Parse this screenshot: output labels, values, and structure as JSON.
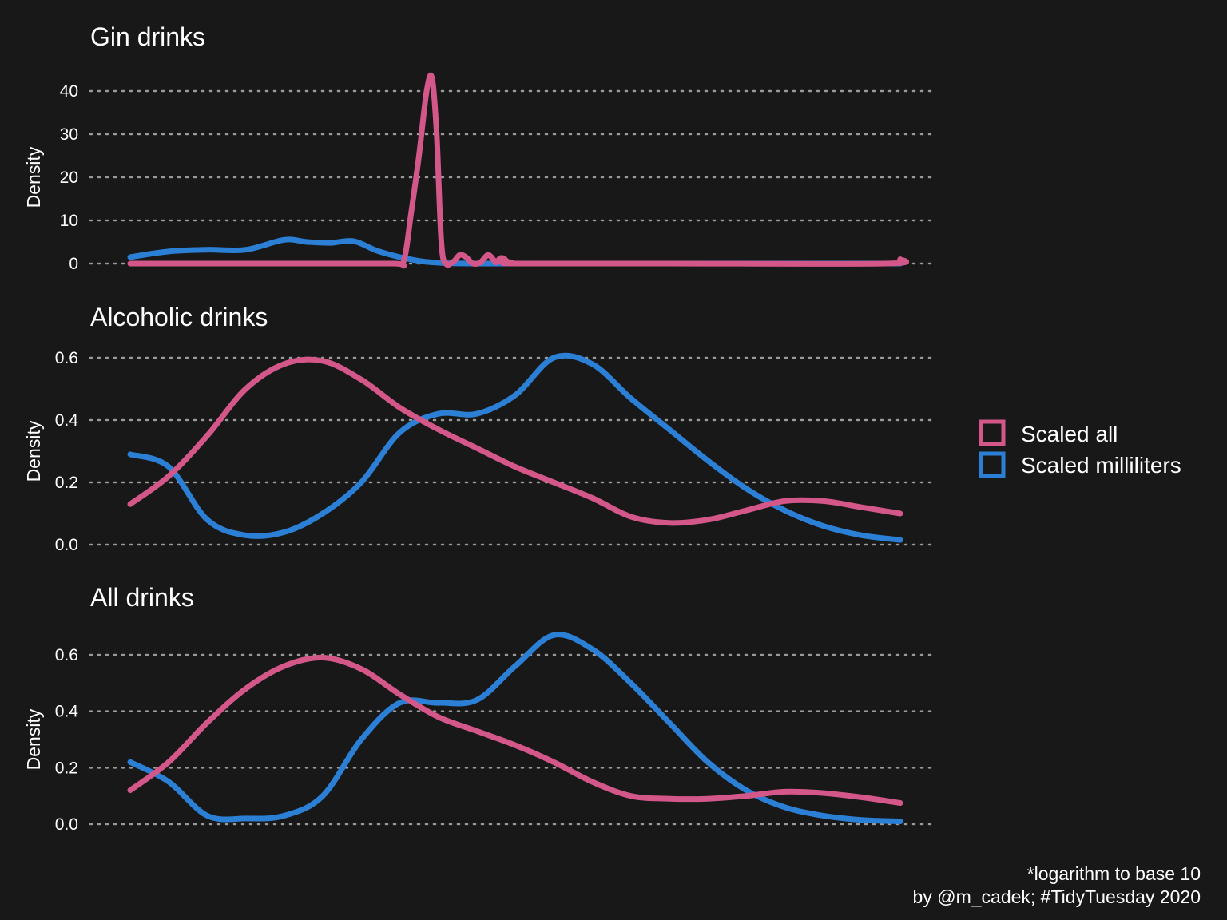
{
  "colors": {
    "scaled_all": "#d4578a",
    "scaled_ml": "#2b7fd4",
    "background": "#181818"
  },
  "legend": {
    "items": [
      {
        "label": "Scaled all",
        "series": "scaled_all"
      },
      {
        "label": "Scaled milliliters",
        "series": "scaled_ml"
      }
    ]
  },
  "caption": {
    "line1": "*logarithm to base 10",
    "line2": "by @m_cadek; #TidyTuesday 2020"
  },
  "chart_data": [
    {
      "type": "line",
      "title": "Gin drinks",
      "ylabel": "Density",
      "xlabel": "",
      "xlim": [
        0,
        1
      ],
      "ylim": [
        0,
        40
      ],
      "yticks": [
        "0",
        "10",
        "20",
        "30",
        "40"
      ],
      "grid": "horizontal-dotted",
      "series": [
        {
          "name": "Scaled all",
          "key": "scaled_all",
          "x": [
            0,
            0.2,
            0.34,
            0.355,
            0.365,
            0.375,
            0.385,
            0.392,
            0.398,
            0.404,
            0.41,
            0.42,
            0.428,
            0.436,
            0.445,
            0.455,
            0.465,
            0.475,
            0.48,
            0.485,
            0.49,
            0.495,
            0.5,
            0.7,
            0.98,
            1.0
          ],
          "y": [
            0,
            0,
            0,
            0.5,
            12,
            25,
            40,
            43,
            30,
            5,
            0,
            0.5,
            2,
            1.5,
            0,
            0.3,
            2,
            0.3,
            1.2,
            1.2,
            0.4,
            0.3,
            0,
            0,
            0,
            1
          ]
        },
        {
          "name": "Scaled milliliters",
          "key": "scaled_ml",
          "x": [
            0,
            0.05,
            0.1,
            0.15,
            0.2,
            0.23,
            0.26,
            0.29,
            0.32,
            0.35,
            0.38,
            0.41,
            0.45,
            0.5,
            0.7,
            1.0
          ],
          "y": [
            1.5,
            2.8,
            3.2,
            3.2,
            5.5,
            5,
            4.8,
            5.2,
            3,
            1.5,
            0.5,
            0.1,
            0,
            0,
            0,
            0
          ]
        }
      ]
    },
    {
      "type": "line",
      "title": "Alcoholic drinks",
      "ylabel": "Density",
      "xlabel": "",
      "xlim": [
        0,
        1
      ],
      "ylim": [
        0,
        0.6
      ],
      "yticks": [
        "0.0",
        "0.2",
        "0.4",
        "0.6"
      ],
      "grid": "horizontal-dotted",
      "series": [
        {
          "name": "Scaled all",
          "key": "scaled_all",
          "x": [
            0,
            0.05,
            0.1,
            0.15,
            0.2,
            0.25,
            0.3,
            0.35,
            0.4,
            0.45,
            0.5,
            0.55,
            0.6,
            0.65,
            0.7,
            0.75,
            0.8,
            0.85,
            0.9,
            0.95,
            1.0
          ],
          "y": [
            0.13,
            0.22,
            0.35,
            0.5,
            0.58,
            0.59,
            0.53,
            0.44,
            0.37,
            0.31,
            0.25,
            0.2,
            0.15,
            0.09,
            0.07,
            0.08,
            0.11,
            0.14,
            0.14,
            0.12,
            0.1
          ]
        },
        {
          "name": "Scaled milliliters",
          "key": "scaled_ml",
          "x": [
            0,
            0.05,
            0.1,
            0.15,
            0.2,
            0.25,
            0.3,
            0.35,
            0.4,
            0.45,
            0.5,
            0.55,
            0.6,
            0.65,
            0.7,
            0.75,
            0.8,
            0.85,
            0.9,
            0.95,
            1.0
          ],
          "y": [
            0.29,
            0.25,
            0.08,
            0.03,
            0.04,
            0.1,
            0.2,
            0.36,
            0.42,
            0.42,
            0.48,
            0.6,
            0.58,
            0.47,
            0.37,
            0.27,
            0.18,
            0.11,
            0.06,
            0.03,
            0.015
          ]
        }
      ]
    },
    {
      "type": "line",
      "title": "All drinks",
      "ylabel": "Density",
      "xlabel": "",
      "xlim": [
        0,
        1
      ],
      "ylim": [
        0,
        0.6
      ],
      "yticks": [
        "0.0",
        "0.2",
        "0.4",
        "0.6"
      ],
      "grid": "horizontal-dotted",
      "series": [
        {
          "name": "Scaled all",
          "key": "scaled_all",
          "x": [
            0,
            0.05,
            0.1,
            0.15,
            0.2,
            0.25,
            0.3,
            0.35,
            0.4,
            0.45,
            0.5,
            0.55,
            0.6,
            0.65,
            0.7,
            0.75,
            0.8,
            0.85,
            0.9,
            0.95,
            1.0
          ],
          "y": [
            0.12,
            0.22,
            0.36,
            0.48,
            0.56,
            0.59,
            0.55,
            0.46,
            0.38,
            0.33,
            0.28,
            0.22,
            0.15,
            0.1,
            0.09,
            0.09,
            0.1,
            0.115,
            0.11,
            0.095,
            0.075
          ]
        },
        {
          "name": "Scaled milliliters",
          "key": "scaled_ml",
          "x": [
            0,
            0.05,
            0.1,
            0.15,
            0.2,
            0.25,
            0.3,
            0.35,
            0.4,
            0.45,
            0.5,
            0.55,
            0.6,
            0.65,
            0.7,
            0.75,
            0.8,
            0.85,
            0.9,
            0.95,
            1.0
          ],
          "y": [
            0.22,
            0.15,
            0.03,
            0.02,
            0.03,
            0.1,
            0.3,
            0.43,
            0.43,
            0.44,
            0.56,
            0.67,
            0.62,
            0.5,
            0.36,
            0.22,
            0.12,
            0.06,
            0.03,
            0.015,
            0.01
          ]
        }
      ]
    }
  ]
}
